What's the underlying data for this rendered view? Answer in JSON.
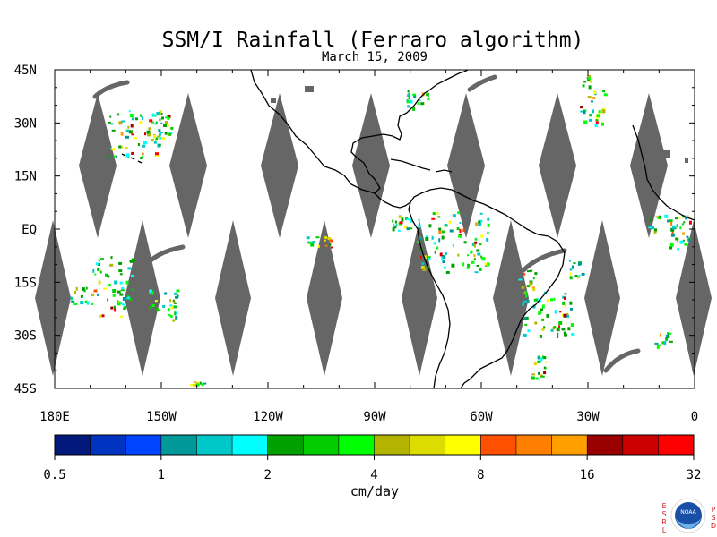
{
  "title": "SSM/I Rainfall (Ferraro algorithm)",
  "subtitle": "March 15, 2009",
  "map": {
    "lon_range": [
      -180,
      0
    ],
    "lat_range": [
      -45,
      45
    ],
    "x_ticks": [
      "180E",
      "150W",
      "120W",
      "90W",
      "60W",
      "30W",
      "0"
    ],
    "y_ticks": [
      "45N",
      "30N",
      "15N",
      "EQ",
      "15S",
      "30S",
      "45S"
    ],
    "land_outline_color": "#000000",
    "no_data_color": "#666666"
  },
  "colorbar": {
    "unit": "cm/day",
    "tick_labels": [
      "0.5",
      "1",
      "2",
      "4",
      "8",
      "16",
      "32"
    ],
    "colors": [
      "#00197a",
      "#0033c0",
      "#0044ff",
      "#00999a",
      "#00c8c8",
      "#00ffff",
      "#00a000",
      "#00cc00",
      "#00ff00",
      "#b4b400",
      "#dcdc00",
      "#ffff00",
      "#ff5000",
      "#ff8000",
      "#ffa000",
      "#990000",
      "#cc0000",
      "#ff0000"
    ]
  },
  "logo": {
    "left_letters": "ESRL",
    "right_letters": "PSD",
    "center_text": "NOAA"
  }
}
